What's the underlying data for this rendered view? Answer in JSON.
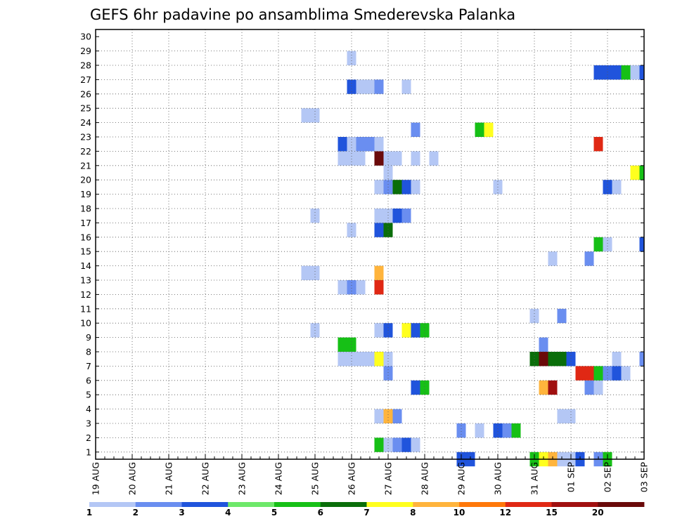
{
  "chart_data": {
    "type": "heatmap",
    "title": "GEFS 6hr padavine po ansamblima Smederevska Palanka",
    "xlabel": "",
    "ylabel": "",
    "x_tick_labels": [
      "19 AUG",
      "20 AUG",
      "21 AUG",
      "22 AUG",
      "23 AUG",
      "24 AUG",
      "25 AUG",
      "26 AUG",
      "27 AUG",
      "28 AUG",
      "29 AUG",
      "30 AUG",
      "31 AUG",
      "01 SEP",
      "02 SEP",
      "03 SEP"
    ],
    "x_range_steps": [
      0,
      60
    ],
    "y_tick_labels": [
      "1",
      "2",
      "3",
      "4",
      "5",
      "6",
      "7",
      "8",
      "9",
      "10",
      "11",
      "12",
      "13",
      "14",
      "15",
      "16",
      "17",
      "18",
      "19",
      "20",
      "21",
      "22",
      "23",
      "24",
      "25",
      "26",
      "27",
      "28",
      "29",
      "30"
    ],
    "y_range": [
      0,
      30
    ],
    "grid": true,
    "legend_position": "bottom",
    "legend": {
      "labels": [
        "1",
        "2",
        "3",
        "4",
        "5",
        "6",
        "7",
        "8",
        "10",
        "12",
        "15",
        "20"
      ],
      "colors": [
        "#b4c7f5",
        "#6a8ef0",
        "#2054dc",
        "#6ee86a",
        "#16c016",
        "#0a6e0a",
        "#ffff1e",
        "#ffb43c",
        "#ff780a",
        "#e02814",
        "#a01010",
        "#6a0a0a"
      ]
    },
    "cells": [
      {
        "t": 40,
        "m": 0,
        "v": 3
      },
      {
        "t": 41,
        "m": 0,
        "v": 3
      },
      {
        "t": 48,
        "m": 0,
        "v": 5
      },
      {
        "t": 49,
        "m": 0,
        "v": 7
      },
      {
        "t": 50,
        "m": 0,
        "v": 8
      },
      {
        "t": 51,
        "m": 0,
        "v": 1
      },
      {
        "t": 52,
        "m": 0,
        "v": 1
      },
      {
        "t": 53,
        "m": 0,
        "v": 3
      },
      {
        "t": 55,
        "m": 0,
        "v": 2
      },
      {
        "t": 56,
        "m": 0,
        "v": 5
      },
      {
        "t": 31,
        "m": 1,
        "v": 5
      },
      {
        "t": 32,
        "m": 1,
        "v": 1
      },
      {
        "t": 33,
        "m": 1,
        "v": 2
      },
      {
        "t": 34,
        "m": 1,
        "v": 3
      },
      {
        "t": 35,
        "m": 1,
        "v": 1
      },
      {
        "t": 40,
        "m": 2,
        "v": 2
      },
      {
        "t": 42,
        "m": 2,
        "v": 1
      },
      {
        "t": 44,
        "m": 2,
        "v": 3
      },
      {
        "t": 45,
        "m": 2,
        "v": 2
      },
      {
        "t": 46,
        "m": 2,
        "v": 5
      },
      {
        "t": 31,
        "m": 3,
        "v": 1
      },
      {
        "t": 32,
        "m": 3,
        "v": 8
      },
      {
        "t": 33,
        "m": 3,
        "v": 2
      },
      {
        "t": 51,
        "m": 3,
        "v": 1
      },
      {
        "t": 52,
        "m": 3,
        "v": 1
      },
      {
        "t": 35,
        "m": 5,
        "v": 3
      },
      {
        "t": 36,
        "m": 5,
        "v": 5
      },
      {
        "t": 49,
        "m": 5,
        "v": 8
      },
      {
        "t": 50,
        "m": 5,
        "v": 15
      },
      {
        "t": 54,
        "m": 5,
        "v": 2
      },
      {
        "t": 55,
        "m": 5,
        "v": 1
      },
      {
        "t": 32,
        "m": 6,
        "v": 2
      },
      {
        "t": 53,
        "m": 6,
        "v": 12
      },
      {
        "t": 54,
        "m": 6,
        "v": 12
      },
      {
        "t": 55,
        "m": 6,
        "v": 5
      },
      {
        "t": 56,
        "m": 6,
        "v": 2
      },
      {
        "t": 57,
        "m": 6,
        "v": 3
      },
      {
        "t": 58,
        "m": 6,
        "v": 1
      },
      {
        "t": 27,
        "m": 7,
        "v": 1
      },
      {
        "t": 28,
        "m": 7,
        "v": 1
      },
      {
        "t": 29,
        "m": 7,
        "v": 1
      },
      {
        "t": 30,
        "m": 7,
        "v": 1
      },
      {
        "t": 31,
        "m": 7,
        "v": 7
      },
      {
        "t": 32,
        "m": 7,
        "v": 1
      },
      {
        "t": 48,
        "m": 7,
        "v": 6
      },
      {
        "t": 49,
        "m": 7,
        "v": 20
      },
      {
        "t": 50,
        "m": 7,
        "v": 6
      },
      {
        "t": 51,
        "m": 7,
        "v": 6
      },
      {
        "t": 52,
        "m": 7,
        "v": 3
      },
      {
        "t": 57,
        "m": 7,
        "v": 1
      },
      {
        "t": 60,
        "m": 7,
        "v": 2
      },
      {
        "t": 27,
        "m": 8,
        "v": 5
      },
      {
        "t": 28,
        "m": 8,
        "v": 5
      },
      {
        "t": 49,
        "m": 8,
        "v": 2
      },
      {
        "t": 24,
        "m": 9,
        "v": 1
      },
      {
        "t": 31,
        "m": 9,
        "v": 1
      },
      {
        "t": 32,
        "m": 9,
        "v": 3
      },
      {
        "t": 34,
        "m": 9,
        "v": 7
      },
      {
        "t": 35,
        "m": 9,
        "v": 3
      },
      {
        "t": 36,
        "m": 9,
        "v": 5
      },
      {
        "t": 48,
        "m": 10,
        "v": 1
      },
      {
        "t": 51,
        "m": 10,
        "v": 2
      },
      {
        "t": 27,
        "m": 12,
        "v": 1
      },
      {
        "t": 28,
        "m": 12,
        "v": 2
      },
      {
        "t": 29,
        "m": 12,
        "v": 1
      },
      {
        "t": 31,
        "m": 12,
        "v": 12
      },
      {
        "t": 23,
        "m": 13,
        "v": 1
      },
      {
        "t": 24,
        "m": 13,
        "v": 1
      },
      {
        "t": 31,
        "m": 13,
        "v": 8
      },
      {
        "t": 50,
        "m": 14,
        "v": 1
      },
      {
        "t": 54,
        "m": 14,
        "v": 2
      },
      {
        "t": 55,
        "m": 15,
        "v": 5
      },
      {
        "t": 56,
        "m": 15,
        "v": 1
      },
      {
        "t": 60,
        "m": 15,
        "v": 3
      },
      {
        "t": 28,
        "m": 16,
        "v": 1
      },
      {
        "t": 31,
        "m": 16,
        "v": 3
      },
      {
        "t": 32,
        "m": 16,
        "v": 6
      },
      {
        "t": 24,
        "m": 17,
        "v": 1
      },
      {
        "t": 31,
        "m": 17,
        "v": 1
      },
      {
        "t": 32,
        "m": 17,
        "v": 1
      },
      {
        "t": 33,
        "m": 17,
        "v": 3
      },
      {
        "t": 34,
        "m": 17,
        "v": 2
      },
      {
        "t": 31,
        "m": 19,
        "v": 1
      },
      {
        "t": 32,
        "m": 19,
        "v": 2
      },
      {
        "t": 33,
        "m": 19,
        "v": 6
      },
      {
        "t": 34,
        "m": 19,
        "v": 3
      },
      {
        "t": 35,
        "m": 19,
        "v": 1
      },
      {
        "t": 44,
        "m": 19,
        "v": 1
      },
      {
        "t": 56,
        "m": 19,
        "v": 3
      },
      {
        "t": 57,
        "m": 19,
        "v": 1
      },
      {
        "t": 32,
        "m": 20,
        "v": 1
      },
      {
        "t": 59,
        "m": 20,
        "v": 7
      },
      {
        "t": 60,
        "m": 20,
        "v": 5
      },
      {
        "t": 27,
        "m": 21,
        "v": 1
      },
      {
        "t": 28,
        "m": 21,
        "v": 1
      },
      {
        "t": 29,
        "m": 21,
        "v": 1
      },
      {
        "t": 31,
        "m": 21,
        "v": 20
      },
      {
        "t": 32,
        "m": 21,
        "v": 1
      },
      {
        "t": 33,
        "m": 21,
        "v": 1
      },
      {
        "t": 35,
        "m": 21,
        "v": 1
      },
      {
        "t": 37,
        "m": 21,
        "v": 1
      },
      {
        "t": 27,
        "m": 22,
        "v": 3
      },
      {
        "t": 28,
        "m": 22,
        "v": 1
      },
      {
        "t": 29,
        "m": 22,
        "v": 2
      },
      {
        "t": 30,
        "m": 22,
        "v": 2
      },
      {
        "t": 31,
        "m": 22,
        "v": 1
      },
      {
        "t": 55,
        "m": 22,
        "v": 12
      },
      {
        "t": 35,
        "m": 23,
        "v": 2
      },
      {
        "t": 42,
        "m": 23,
        "v": 5
      },
      {
        "t": 43,
        "m": 23,
        "v": 7
      },
      {
        "t": 23,
        "m": 24,
        "v": 1
      },
      {
        "t": 24,
        "m": 24,
        "v": 1
      },
      {
        "t": 28,
        "m": 26,
        "v": 3
      },
      {
        "t": 29,
        "m": 26,
        "v": 1
      },
      {
        "t": 30,
        "m": 26,
        "v": 1
      },
      {
        "t": 31,
        "m": 26,
        "v": 2
      },
      {
        "t": 34,
        "m": 26,
        "v": 1
      },
      {
        "t": 55,
        "m": 27,
        "v": 3
      },
      {
        "t": 56,
        "m": 27,
        "v": 3
      },
      {
        "t": 57,
        "m": 27,
        "v": 3
      },
      {
        "t": 58,
        "m": 27,
        "v": 5
      },
      {
        "t": 59,
        "m": 27,
        "v": 1
      },
      {
        "t": 60,
        "m": 27,
        "v": 3
      },
      {
        "t": 28,
        "m": 28,
        "v": 1
      }
    ]
  }
}
